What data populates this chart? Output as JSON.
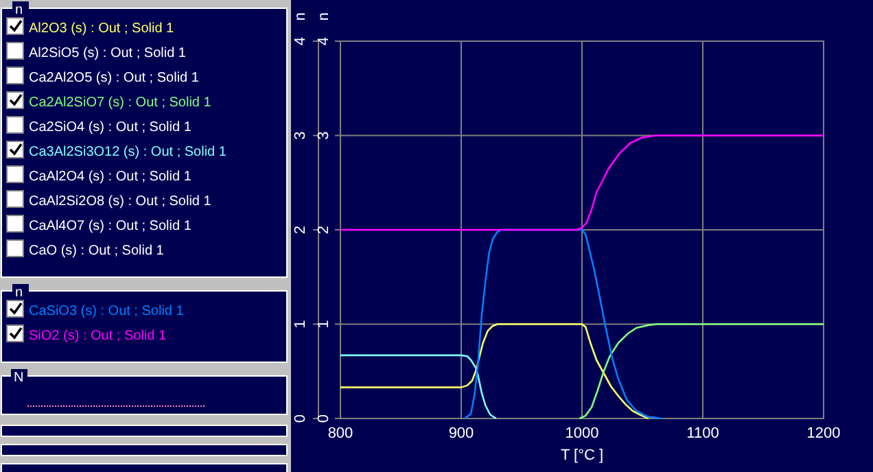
{
  "chart_data": {
    "type": "line",
    "xlabel": "T [°C ]",
    "ylabel": "n",
    "y2label": "n",
    "xlim": [
      800,
      1200
    ],
    "xticks": [
      800,
      900,
      1000,
      1100,
      1200
    ],
    "ylim": [
      0,
      4
    ],
    "yticks": [
      0,
      1,
      2,
      3,
      4
    ],
    "y2lim": [
      0,
      4
    ],
    "y2ticks": [
      0,
      1,
      2,
      3,
      4
    ],
    "grid": true,
    "legend": "left",
    "marker": "none",
    "line_style": "solid",
    "annotations": [
      "n",
      "n",
      "N"
    ],
    "series": [
      {
        "name": "Al2O3 (s) : Out ; Solid 1",
        "color": "#ffff66",
        "x": [
          800,
          900,
          905,
          909,
          912,
          915,
          918,
          922,
          926,
          930,
          1000,
          1003,
          1007,
          1012,
          1018,
          1024,
          1030,
          1036,
          1042,
          1048,
          1055
        ],
        "values": [
          0.33,
          0.33,
          0.35,
          0.4,
          0.5,
          0.65,
          0.8,
          0.93,
          0.98,
          1,
          1,
          0.97,
          0.8,
          0.62,
          0.48,
          0.34,
          0.24,
          0.15,
          0.08,
          0.04,
          0
        ]
      },
      {
        "name": "Al2SiO5 (s) : Out ; Solid 1",
        "color": "#ffffff"
      },
      {
        "name": "Ca2Al2O5 (s) : Out ; Solid 1",
        "color": "#ffffff"
      },
      {
        "name": "Ca2Al2SiO7 (s) : Out ; Solid 1",
        "color": "#80ff80",
        "x": [
          998,
          1003,
          1008,
          1013,
          1018,
          1023,
          1030,
          1038,
          1045,
          1055,
          1062,
          1200
        ],
        "values": [
          0,
          0.03,
          0.12,
          0.3,
          0.5,
          0.66,
          0.8,
          0.9,
          0.96,
          0.99,
          1,
          1
        ]
      },
      {
        "name": "Ca2SiO4 (s) : Out ; Solid 1",
        "color": "#ffffff"
      },
      {
        "name": "Ca3Al2Si3O12 (s) : Out ; Solid 1",
        "color": "#80ffff",
        "x": [
          800,
          900,
          905,
          908,
          912,
          914,
          917,
          920,
          924,
          929
        ],
        "values": [
          0.67,
          0.67,
          0.66,
          0.62,
          0.54,
          0.45,
          0.27,
          0.14,
          0.04,
          0
        ]
      },
      {
        "name": "CaAl2O4 (s) : Out ; Solid 1",
        "color": "#ffffff"
      },
      {
        "name": "CaAl2Si2O8 (s) : Out ; Solid 1",
        "color": "#ffffff"
      },
      {
        "name": "CaAl4O7 (s) : Out ; Solid 1",
        "color": "#ffffff"
      },
      {
        "name": "CaO (s) : Out ; Solid 1",
        "color": "#ffffff"
      },
      {
        "name": "CaSiO3 (s) : Out ; Solid 1",
        "color": "#0080ff",
        "axis": "y2",
        "x": [
          903,
          908,
          911,
          914,
          917,
          920,
          923,
          926,
          930,
          933,
          1000,
          1003,
          1007,
          1010,
          1014,
          1019,
          1025,
          1030,
          1037,
          1045,
          1054,
          1066
        ],
        "values": [
          0,
          0.05,
          0.25,
          0.6,
          1.1,
          1.45,
          1.75,
          1.9,
          1.98,
          2,
          2,
          1.95,
          1.74,
          1.58,
          1.33,
          1,
          0.64,
          0.42,
          0.2,
          0.08,
          0.02,
          0
        ]
      },
      {
        "name": "SiO2 (s) : Out ; Solid 1",
        "color": "#ff00ff",
        "axis": "y2",
        "x": [
          800,
          995,
          1000,
          1004,
          1008,
          1012,
          1017,
          1022,
          1031,
          1040,
          1050,
          1062,
          1200
        ],
        "values": [
          2,
          2,
          2.02,
          2.08,
          2.22,
          2.4,
          2.52,
          2.65,
          2.81,
          2.92,
          2.98,
          3,
          3
        ]
      }
    ]
  }
}
